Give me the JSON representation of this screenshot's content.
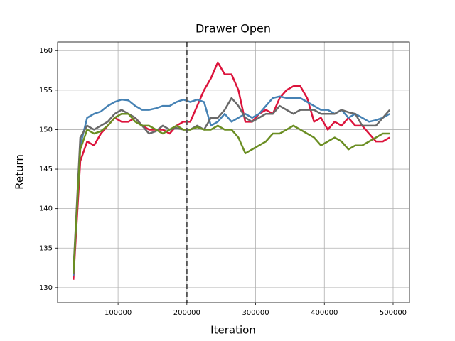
{
  "chart_data": {
    "type": "line",
    "title": "Drawer Open",
    "xlabel": "Iteration",
    "ylabel": "Return",
    "x": [
      35000,
      45000,
      55000,
      65000,
      75000,
      85000,
      95000,
      105000,
      115000,
      125000,
      135000,
      145000,
      155000,
      165000,
      175000,
      185000,
      195000,
      205000,
      215000,
      225000,
      235000,
      245000,
      255000,
      265000,
      275000,
      285000,
      295000,
      305000,
      315000,
      325000,
      335000,
      345000,
      355000,
      365000,
      375000,
      385000,
      395000,
      405000,
      415000,
      425000,
      435000,
      445000,
      455000,
      465000,
      475000,
      485000,
      495000
    ],
    "series": [
      {
        "color": "#dc143c",
        "values": [
          131,
          146,
          148.5,
          148,
          149.5,
          150.5,
          151.5,
          151,
          151,
          151.5,
          150.5,
          150,
          150,
          150,
          149.5,
          150.5,
          151,
          151,
          153,
          155,
          156.5,
          158.5,
          157,
          157,
          155,
          151,
          151,
          152,
          152.5,
          152,
          154,
          155,
          155.5,
          155.5,
          154,
          151,
          151.5,
          150,
          151,
          150.5,
          151.5,
          150.5,
          150.5,
          149.5,
          148.5,
          148.5,
          149
        ]
      },
      {
        "color": "#4682b4",
        "values": [
          131.5,
          148,
          151.5,
          152,
          152.3,
          153,
          153.5,
          153.8,
          153.7,
          153,
          152.5,
          152.5,
          152.7,
          153,
          153,
          153.5,
          153.8,
          153.5,
          153.8,
          153.5,
          150.5,
          151,
          152,
          151,
          151.5,
          152,
          151.5,
          152,
          153,
          154,
          154.2,
          154,
          154,
          154,
          153.5,
          153,
          152.5,
          152.5,
          152,
          152.5,
          151.5,
          152,
          151.5,
          151,
          151.2,
          151.5,
          152
        ]
      },
      {
        "color": "#696969",
        "values": [
          132,
          149,
          150.5,
          150,
          150.5,
          151,
          152,
          152.5,
          152,
          151.5,
          150.5,
          149.5,
          149.8,
          150.5,
          150,
          150.2,
          150,
          150,
          150.5,
          150,
          151.5,
          151.5,
          152.5,
          154,
          153,
          151.5,
          151,
          151.5,
          152,
          152,
          153,
          152.5,
          152,
          152.5,
          152.5,
          152.5,
          152,
          152,
          152,
          152.5,
          152.2,
          152,
          150.5,
          150.5,
          150.5,
          151.5,
          152.5
        ]
      },
      {
        "color": "#6b8e23",
        "values": [
          131.8,
          147.5,
          150,
          149.5,
          149.8,
          150.5,
          151.5,
          152,
          152,
          151,
          150.5,
          150.5,
          150,
          149.5,
          150,
          150.5,
          150,
          150,
          150.3,
          150,
          150,
          150.5,
          150,
          150,
          149,
          147,
          147.5,
          148,
          148.5,
          149.5,
          149.5,
          150,
          150.5,
          150,
          149.5,
          149,
          148,
          148.5,
          149,
          148.5,
          147.5,
          148,
          148,
          148.5,
          149,
          149.5,
          149.5
        ]
      }
    ],
    "xlim": [
      12000,
      523800
    ],
    "ylim": [
      128.1,
      161.1
    ],
    "xticks": [
      100000,
      200000,
      300000,
      400000,
      500000
    ],
    "yticks": [
      130,
      135,
      140,
      145,
      150,
      155,
      160
    ],
    "vline": 200000,
    "grid": true
  }
}
